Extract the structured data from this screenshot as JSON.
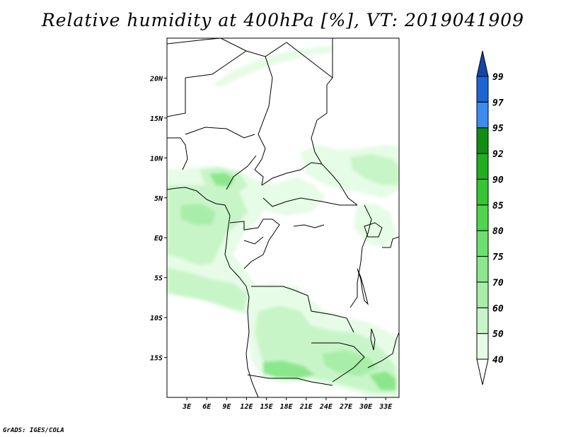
{
  "title": "Relative humidity at 400hPa [%], VT: 2019041909",
  "credit": "GrADS: IGES/COLA",
  "map": {
    "lon_range": [
      0,
      35
    ],
    "lat_range": [
      -20,
      25
    ],
    "lon_ticks": [
      {
        "value": 3,
        "label": "3E"
      },
      {
        "value": 6,
        "label": "6E"
      },
      {
        "value": 9,
        "label": "9E"
      },
      {
        "value": 12,
        "label": "12E"
      },
      {
        "value": 15,
        "label": "15E"
      },
      {
        "value": 18,
        "label": "18E"
      },
      {
        "value": 21,
        "label": "21E"
      },
      {
        "value": 24,
        "label": "24E"
      },
      {
        "value": 27,
        "label": "27E"
      },
      {
        "value": 30,
        "label": "30E"
      },
      {
        "value": 33,
        "label": "33E"
      }
    ],
    "lat_ticks": [
      {
        "value": 20,
        "label": "20N"
      },
      {
        "value": 15,
        "label": "15N"
      },
      {
        "value": 10,
        "label": "10N"
      },
      {
        "value": 5,
        "label": "5N"
      },
      {
        "value": 0,
        "label": "EQ"
      },
      {
        "value": -5,
        "label": "5S"
      },
      {
        "value": -10,
        "label": "10S"
      },
      {
        "value": -15,
        "label": "15S"
      }
    ]
  },
  "colorbar": {
    "levels": [
      "40",
      "50",
      "60",
      "70",
      "75",
      "80",
      "85",
      "90",
      "92",
      "95",
      "97",
      "99"
    ],
    "colors": [
      "#ffffff",
      "#e6fce6",
      "#c8f5c8",
      "#a8eea8",
      "#8ce68c",
      "#6ede6e",
      "#50d450",
      "#36c336",
      "#22ad22",
      "#118e11",
      "#3c8cee",
      "#1e64d2",
      "#1446aa"
    ]
  }
}
